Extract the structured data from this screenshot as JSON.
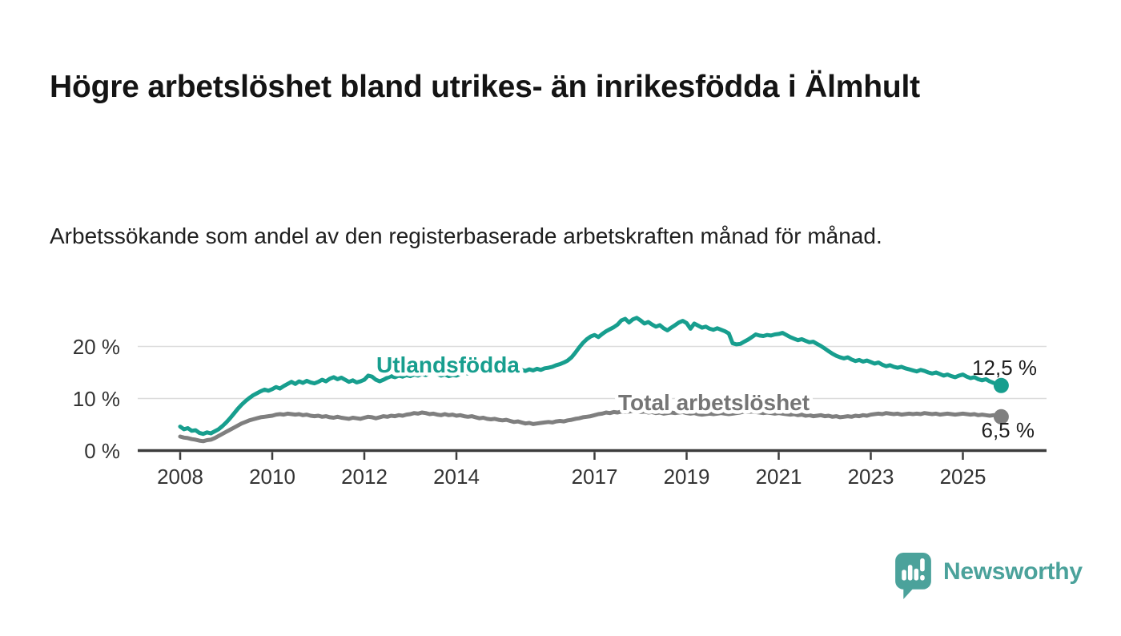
{
  "header": {
    "title": "Högre arbetslöshet bland utrikes- än inrikesfödda i Älmhult",
    "subtitle": "Arbetssökande som andel av den registerbaserade arbetskraften månad för månad."
  },
  "chart_data": {
    "type": "line",
    "title": "Högre arbetslöshet bland utrikes- än inrikesfödda i Älmhult",
    "subtitle": "Arbetssökande som andel av den registerbaserade arbetskraften månad för månad.",
    "x_unit": "month",
    "x_start": "2008-01",
    "x_end": "2025-11",
    "points_per_year": 12,
    "ylim": [
      0,
      26
    ],
    "grid": "horizontal",
    "y_ticks": [
      {
        "value": 0,
        "label": "0 %"
      },
      {
        "value": 10,
        "label": "10 %"
      },
      {
        "value": 20,
        "label": "20 %"
      }
    ],
    "x_ticks": [
      {
        "year": 2008,
        "label": "2008"
      },
      {
        "year": 2010,
        "label": "2010"
      },
      {
        "year": 2012,
        "label": "2012"
      },
      {
        "year": 2014,
        "label": "2014"
      },
      {
        "year": 2017,
        "label": "2017"
      },
      {
        "year": 2019,
        "label": "2019"
      },
      {
        "year": 2021,
        "label": "2021"
      },
      {
        "year": 2023,
        "label": "2023"
      },
      {
        "year": 2025,
        "label": "2025"
      }
    ],
    "series": [
      {
        "name": "Utlandsfödda",
        "color": "#179e8e",
        "end_value": 12.5,
        "end_label": "12,5 %",
        "values": [
          4.6,
          4.1,
          4.3,
          3.8,
          3.9,
          3.4,
          3.2,
          3.5,
          3.3,
          3.7,
          4.1,
          4.7,
          5.4,
          6.2,
          7.1,
          8.0,
          8.8,
          9.5,
          10.1,
          10.6,
          11.0,
          11.4,
          11.7,
          11.5,
          11.8,
          12.2,
          11.9,
          12.4,
          12.8,
          13.2,
          12.8,
          13.3,
          13.0,
          13.4,
          13.1,
          12.9,
          13.2,
          13.6,
          13.3,
          13.8,
          14.1,
          13.7,
          14.0,
          13.6,
          13.2,
          13.5,
          13.1,
          13.3,
          13.6,
          14.4,
          14.2,
          13.6,
          13.3,
          13.6,
          14.0,
          14.3,
          14.1,
          14.4,
          14.2,
          14.5,
          14.3,
          14.6,
          14.4,
          14.7,
          14.5,
          14.8,
          15.0,
          14.7,
          14.4,
          14.6,
          14.3,
          14.5,
          14.4,
          14.7,
          15.0,
          14.8,
          15.1,
          14.9,
          15.2,
          15.0,
          14.7,
          14.9,
          15.1,
          14.8,
          15.0,
          15.3,
          15.1,
          15.4,
          15.2,
          15.5,
          15.3,
          15.6,
          15.4,
          15.7,
          15.5,
          15.8,
          15.9,
          16.1,
          16.4,
          16.6,
          16.9,
          17.3,
          17.9,
          18.8,
          19.8,
          20.7,
          21.4,
          21.9,
          22.2,
          21.8,
          22.4,
          22.9,
          23.3,
          23.7,
          24.2,
          25.0,
          25.3,
          24.6,
          25.2,
          25.5,
          25.0,
          24.4,
          24.7,
          24.2,
          23.8,
          24.1,
          23.5,
          23.1,
          23.6,
          24.1,
          24.6,
          24.9,
          24.5,
          23.4,
          24.4,
          24.0,
          23.6,
          23.8,
          23.4,
          23.2,
          23.5,
          23.2,
          22.9,
          22.5,
          20.6,
          20.4,
          20.5,
          20.9,
          21.3,
          21.8,
          22.3,
          22.1,
          22.0,
          22.2,
          22.1,
          22.3,
          22.4,
          22.6,
          22.2,
          21.8,
          21.5,
          21.2,
          21.4,
          21.1,
          20.8,
          20.9,
          20.5,
          20.1,
          19.6,
          19.1,
          18.6,
          18.2,
          17.9,
          17.7,
          17.9,
          17.5,
          17.2,
          17.4,
          17.1,
          17.3,
          17.0,
          16.7,
          16.9,
          16.5,
          16.2,
          16.4,
          16.1,
          15.9,
          16.1,
          15.8,
          15.6,
          15.4,
          15.2,
          15.5,
          15.3,
          15.0,
          14.8,
          15.0,
          14.7,
          14.4,
          14.6,
          14.3,
          14.1,
          14.4,
          14.6,
          14.2,
          13.9,
          14.1,
          13.7,
          13.5,
          13.7,
          13.3,
          13.0,
          12.8,
          12.5
        ]
      },
      {
        "name": "Total arbetslöshet",
        "color": "#7f7f7f",
        "end_value": 6.5,
        "end_label": "6,5 %",
        "values": [
          2.7,
          2.5,
          2.4,
          2.2,
          2.1,
          1.9,
          1.8,
          2.0,
          2.1,
          2.4,
          2.8,
          3.2,
          3.6,
          4.0,
          4.4,
          4.8,
          5.2,
          5.5,
          5.8,
          6.0,
          6.2,
          6.4,
          6.5,
          6.6,
          6.7,
          6.9,
          7.0,
          6.9,
          7.1,
          7.0,
          6.9,
          7.0,
          6.8,
          6.9,
          6.7,
          6.6,
          6.7,
          6.5,
          6.6,
          6.4,
          6.3,
          6.5,
          6.3,
          6.2,
          6.1,
          6.3,
          6.2,
          6.1,
          6.3,
          6.5,
          6.4,
          6.2,
          6.4,
          6.6,
          6.5,
          6.7,
          6.6,
          6.8,
          6.7,
          6.9,
          7.0,
          7.2,
          7.1,
          7.3,
          7.2,
          7.0,
          7.1,
          6.9,
          6.8,
          7.0,
          6.8,
          6.9,
          6.7,
          6.8,
          6.6,
          6.5,
          6.6,
          6.4,
          6.2,
          6.3,
          6.1,
          6.0,
          6.1,
          5.9,
          5.8,
          5.9,
          5.7,
          5.5,
          5.6,
          5.4,
          5.2,
          5.3,
          5.1,
          5.2,
          5.3,
          5.4,
          5.5,
          5.4,
          5.6,
          5.7,
          5.6,
          5.8,
          5.9,
          6.1,
          6.2,
          6.4,
          6.5,
          6.6,
          6.8,
          7.0,
          7.1,
          7.3,
          7.2,
          7.4,
          7.3,
          7.5,
          7.4,
          7.5,
          7.6,
          7.5,
          7.4,
          7.5,
          7.3,
          7.4,
          7.2,
          7.3,
          7.1,
          7.2,
          7.3,
          7.2,
          7.3,
          7.4,
          7.2,
          7.1,
          7.2,
          7.0,
          6.9,
          7.0,
          7.1,
          7.0,
          7.1,
          7.2,
          7.1,
          7.0,
          7.1,
          7.2,
          7.3,
          7.5,
          7.4,
          7.5,
          7.4,
          7.3,
          7.2,
          7.3,
          7.2,
          7.1,
          7.2,
          7.1,
          7.0,
          6.9,
          7.0,
          6.8,
          6.9,
          6.7,
          6.8,
          6.6,
          6.7,
          6.8,
          6.6,
          6.7,
          6.5,
          6.6,
          6.4,
          6.5,
          6.6,
          6.5,
          6.7,
          6.6,
          6.8,
          6.7,
          6.9,
          7.0,
          7.1,
          7.0,
          7.2,
          7.1,
          7.0,
          7.1,
          6.9,
          7.0,
          7.1,
          7.0,
          7.1,
          7.0,
          7.2,
          7.1,
          7.0,
          7.1,
          6.9,
          7.0,
          7.1,
          7.0,
          6.9,
          7.0,
          7.1,
          7.0,
          6.9,
          7.0,
          6.8,
          6.9,
          6.8,
          6.7,
          6.8,
          6.6,
          6.5
        ]
      }
    ],
    "colors": {
      "axis": "#3d3d3d",
      "gridline": "#dcdcdc",
      "tick_text": "#333333"
    },
    "legend_position": "inline-labels"
  },
  "footer": {
    "brand": "Newsworthy",
    "brand_color": "#4ba29b"
  }
}
